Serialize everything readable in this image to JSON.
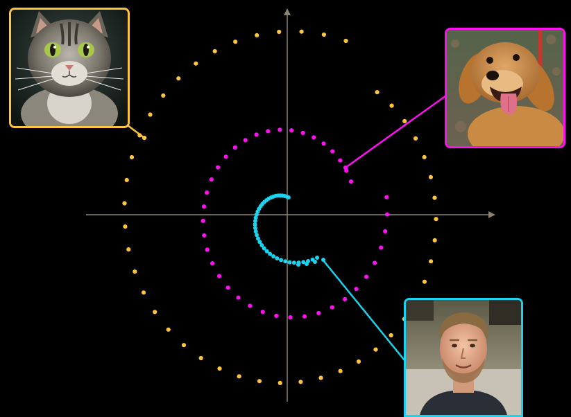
{
  "colors": {
    "background": "#000000",
    "axis": "#8a8270",
    "cat": "#ffc43d",
    "dog": "#ff10f0",
    "person": "#18d4f0"
  },
  "items": [
    {
      "id": "cat",
      "icon": "cat-photo",
      "color_key": "cat"
    },
    {
      "id": "dog",
      "icon": "dog-photo",
      "color_key": "dog"
    },
    {
      "id": "person",
      "icon": "person-photo",
      "color_key": "person"
    }
  ]
}
